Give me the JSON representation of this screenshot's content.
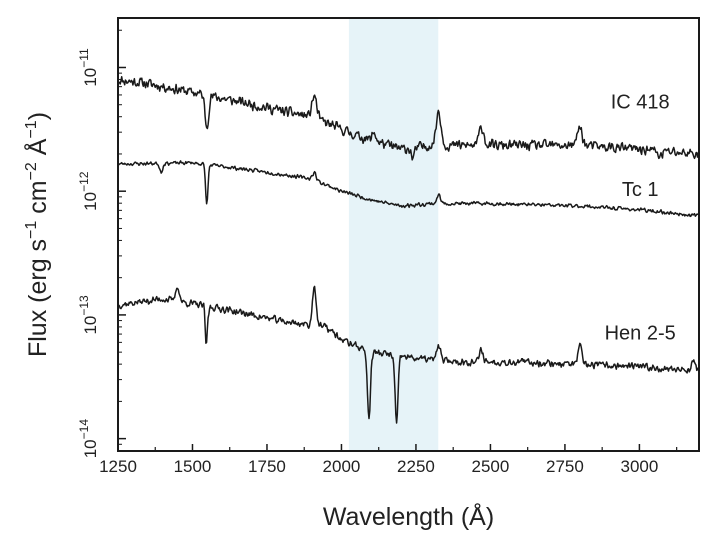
{
  "chart_data": {
    "type": "line",
    "title": "",
    "xlabel": "Wavelength (Å)",
    "ylabel": "Flux (erg s⁻¹ cm⁻² Å⁻¹)",
    "xlim": [
      1250,
      3200
    ],
    "ylim_log10": [
      -14.1,
      -10.6
    ],
    "yscale": "log",
    "grid": false,
    "x_ticks": [
      1250,
      1500,
      1750,
      2000,
      2250,
      2500,
      2750,
      3000
    ],
    "x_tick_labels": [
      "1250",
      "1500",
      "1750",
      "2000",
      "2250",
      "2500",
      "2750",
      "3000"
    ],
    "y_tick_labels": [
      {
        "base": "10",
        "exp": "−11",
        "log10": -11
      },
      {
        "base": "10",
        "exp": "−12",
        "log10": -12
      },
      {
        "base": "10",
        "exp": "−13",
        "log10": -13
      },
      {
        "base": "10",
        "exp": "−14",
        "log10": -14
      }
    ],
    "highlight_band": {
      "x_start": 2025,
      "x_end": 2325,
      "color": "#e6f3f8"
    },
    "series": [
      {
        "name": "IC 418",
        "label_x": 3120,
        "label_log10": -11.33,
        "seed": 11,
        "noise": 0.05,
        "anchors": [
          [
            1250,
            -11.1
          ],
          [
            1350,
            -11.13
          ],
          [
            1500,
            -11.2
          ],
          [
            1700,
            -11.3
          ],
          [
            1900,
            -11.4
          ],
          [
            2050,
            -11.55
          ],
          [
            2200,
            -11.66
          ],
          [
            2300,
            -11.63
          ],
          [
            2500,
            -11.63
          ],
          [
            2800,
            -11.63
          ],
          [
            3000,
            -11.66
          ],
          [
            3200,
            -11.7
          ]
        ],
        "features": [
          [
            1548,
            -0.25,
            6
          ],
          [
            1909,
            0.18,
            8
          ],
          [
            2110,
            0.07,
            6
          ],
          [
            2240,
            -0.08,
            6
          ],
          [
            2326,
            0.28,
            8
          ],
          [
            2470,
            0.15,
            8
          ],
          [
            2800,
            0.15,
            8
          ],
          [
            3070,
            -0.05,
            6
          ]
        ]
      },
      {
        "name": "Tc 1",
        "label_x": 3120,
        "label_log10": -12.04,
        "seed": 23,
        "noise": 0.018,
        "anchors": [
          [
            1250,
            -11.78
          ],
          [
            1500,
            -11.77
          ],
          [
            1700,
            -11.83
          ],
          [
            1900,
            -11.9
          ],
          [
            2000,
            -12.0
          ],
          [
            2100,
            -12.07
          ],
          [
            2200,
            -12.12
          ],
          [
            2300,
            -12.1
          ],
          [
            2500,
            -12.1
          ],
          [
            2800,
            -12.12
          ],
          [
            3000,
            -12.15
          ],
          [
            3200,
            -12.2
          ]
        ],
        "features": [
          [
            1548,
            -0.32,
            4
          ],
          [
            1395,
            -0.07,
            5
          ],
          [
            1909,
            0.06,
            6
          ],
          [
            2326,
            0.07,
            6
          ]
        ]
      },
      {
        "name": "Hen 2-5",
        "label_x": 3120,
        "label_log10": -13.2,
        "seed": 37,
        "noise": 0.035,
        "anchors": [
          [
            1250,
            -12.92
          ],
          [
            1400,
            -12.87
          ],
          [
            1600,
            -12.95
          ],
          [
            1800,
            -13.05
          ],
          [
            1950,
            -13.1
          ],
          [
            2000,
            -13.2
          ],
          [
            2100,
            -13.3
          ],
          [
            2250,
            -13.35
          ],
          [
            2400,
            -13.38
          ],
          [
            2600,
            -13.38
          ],
          [
            2800,
            -13.4
          ],
          [
            3000,
            -13.42
          ],
          [
            3200,
            -13.45
          ]
        ],
        "features": [
          [
            1548,
            -0.45,
            4
          ],
          [
            1550,
            0.2,
            3
          ],
          [
            1450,
            0.12,
            6
          ],
          [
            1909,
            0.33,
            6
          ],
          [
            2092,
            -0.55,
            5
          ],
          [
            2185,
            -0.55,
            5
          ],
          [
            2326,
            0.12,
            6
          ],
          [
            2470,
            0.1,
            6
          ],
          [
            2800,
            0.15,
            6
          ],
          [
            3180,
            0.08,
            6
          ]
        ]
      }
    ]
  }
}
